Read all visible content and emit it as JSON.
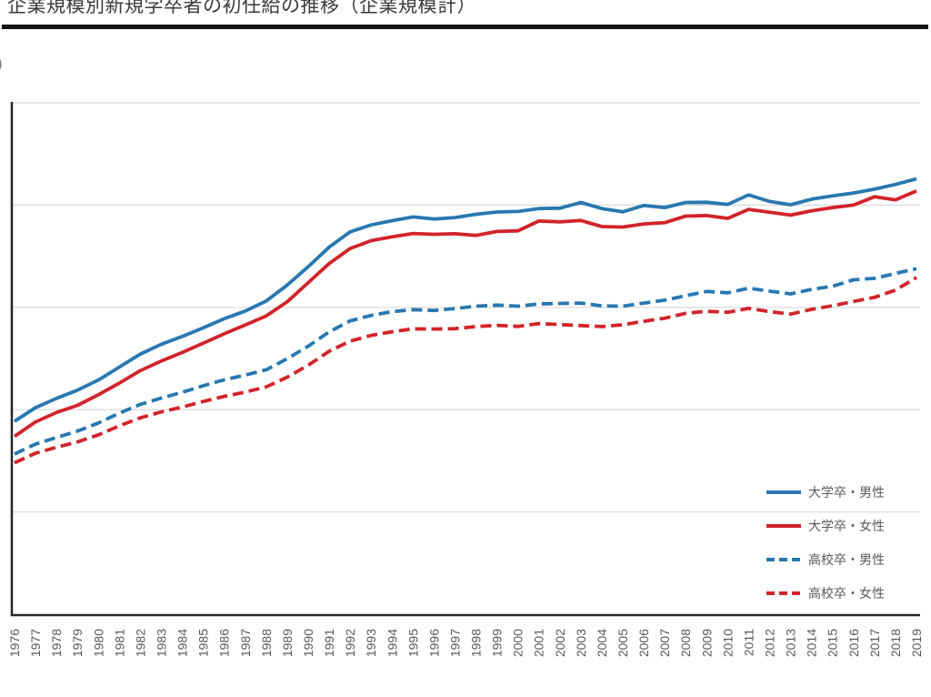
{
  "page": {
    "title": "企業規模別新規学卒者の初任給の推移（企業規模計）",
    "unit_label_remnant": ")"
  },
  "chart_data": {
    "type": "line",
    "title": "企業規模別新規学卒者の初任給の推移（企業規模計）",
    "x": [
      1976,
      1977,
      1978,
      1979,
      1980,
      1981,
      1982,
      1983,
      1984,
      1985,
      1986,
      1987,
      1988,
      1989,
      1990,
      1991,
      1992,
      1993,
      1994,
      1995,
      1996,
      1997,
      1998,
      1999,
      2000,
      2001,
      2002,
      2003,
      2004,
      2005,
      2006,
      2007,
      2008,
      2009,
      2010,
      2011,
      2012,
      2013,
      2014,
      2015,
      2016,
      2017,
      2018,
      2019
    ],
    "ylim": [
      0,
      250
    ],
    "gridline_interval": 50,
    "grid": true,
    "legend_position": "inside-right-lower",
    "series": [
      {
        "key": "univ-male",
        "name": "大学卒・男性",
        "color": "#2878b0",
        "style": "solid",
        "values": [
          94.3,
          101.0,
          105.5,
          109.5,
          114.5,
          120.8,
          127.2,
          132.0,
          135.8,
          140.0,
          144.5,
          148.2,
          153.1,
          160.9,
          169.9,
          179.4,
          186.9,
          190.3,
          192.4,
          194.2,
          193.2,
          193.9,
          195.5,
          196.6,
          196.9,
          198.3,
          198.5,
          201.3,
          198.3,
          196.7,
          199.8,
          198.8,
          201.3,
          201.4,
          200.3,
          205.0,
          201.8,
          200.2,
          202.9,
          204.5,
          205.9,
          207.8,
          210.1,
          212.8
        ]
      },
      {
        "key": "univ-female",
        "name": "大学卒・女性",
        "color": "#d2232a",
        "style": "solid",
        "values": [
          86.9,
          94.0,
          98.6,
          102.1,
          107.3,
          113.0,
          119.1,
          123.8,
          128.0,
          132.5,
          137.1,
          141.4,
          145.8,
          152.7,
          162.1,
          171.4,
          178.8,
          182.6,
          184.5,
          186.1,
          185.7,
          186.0,
          185.2,
          187.1,
          187.4,
          192.2,
          191.8,
          192.5,
          189.5,
          189.3,
          190.8,
          191.4,
          194.6,
          194.9,
          193.5,
          197.9,
          196.5,
          195.1,
          197.2,
          198.8,
          200.0,
          204.1,
          202.6,
          206.9
        ]
      },
      {
        "key": "hs-male",
        "name": "高校卒・男性",
        "color": "#2878b0",
        "style": "dashed",
        "values": [
          78.3,
          83.2,
          86.4,
          89.5,
          93.5,
          98.3,
          102.6,
          105.7,
          108.5,
          111.7,
          114.6,
          116.9,
          119.5,
          124.9,
          131.0,
          138.0,
          143.4,
          146.1,
          147.9,
          148.9,
          148.5,
          149.4,
          150.6,
          151.1,
          150.6,
          151.7,
          151.9,
          152.1,
          150.7,
          150.6,
          152.1,
          153.5,
          155.7,
          157.8,
          157.1,
          159.4,
          157.9,
          156.6,
          158.8,
          160.3,
          163.5,
          164.2,
          166.6,
          168.9
        ]
      },
      {
        "key": "hs-female",
        "name": "高校卒・女性",
        "color": "#d2232a",
        "style": "dashed",
        "values": [
          74.0,
          78.7,
          81.6,
          84.2,
          87.7,
          92.1,
          96.0,
          98.9,
          101.3,
          104.0,
          106.5,
          108.6,
          111.1,
          115.9,
          121.7,
          128.5,
          133.5,
          136.3,
          138.1,
          139.5,
          139.4,
          139.6,
          140.6,
          141.2,
          140.7,
          142.1,
          141.6,
          141.1,
          140.6,
          141.5,
          143.2,
          144.7,
          147.1,
          148.1,
          147.6,
          149.5,
          147.9,
          146.7,
          149.0,
          150.8,
          152.9,
          154.9,
          158.4,
          164.6
        ]
      }
    ],
    "colors": {
      "grid": "#d9d9d9",
      "axis": "#262626",
      "tick_text": "#595959",
      "legend_text": "#595959"
    }
  }
}
